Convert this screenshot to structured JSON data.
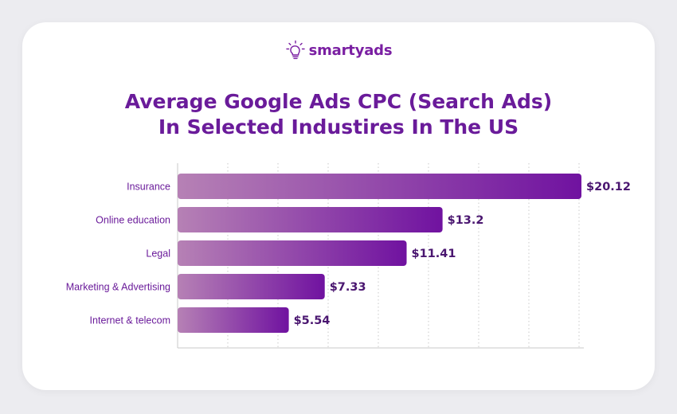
{
  "brand": {
    "logo_text": "smartyads",
    "color": "#7a1fa2"
  },
  "title_lines": [
    "Average Google Ads CPC (Search Ads)",
    "In Selected Industires In The US"
  ],
  "colors": {
    "title": "#6a1b9a",
    "bar_start": "#b681b5",
    "bar_end": "#7012a0",
    "label": "#6a1b9a",
    "value_label": "#4a1670",
    "grid": "#c9c9c9",
    "axis": "#c9c9c9"
  },
  "chart_data": {
    "type": "bar",
    "orientation": "horizontal",
    "categories": [
      "Insurance",
      "Online education",
      "Legal",
      "Marketing & Advertising",
      "Internet & telecom"
    ],
    "values": [
      20.12,
      13.2,
      11.41,
      7.33,
      5.54
    ],
    "value_labels": [
      "$20.12",
      "$13.2",
      "$11.41",
      "$7.33",
      "$5.54"
    ],
    "xlim": [
      0,
      20
    ],
    "grid": true,
    "grid_style": "dotted-vertical",
    "title": "Average Google Ads CPC (Search Ads) In Selected Industires In The US",
    "xlabel": "",
    "ylabel": ""
  }
}
